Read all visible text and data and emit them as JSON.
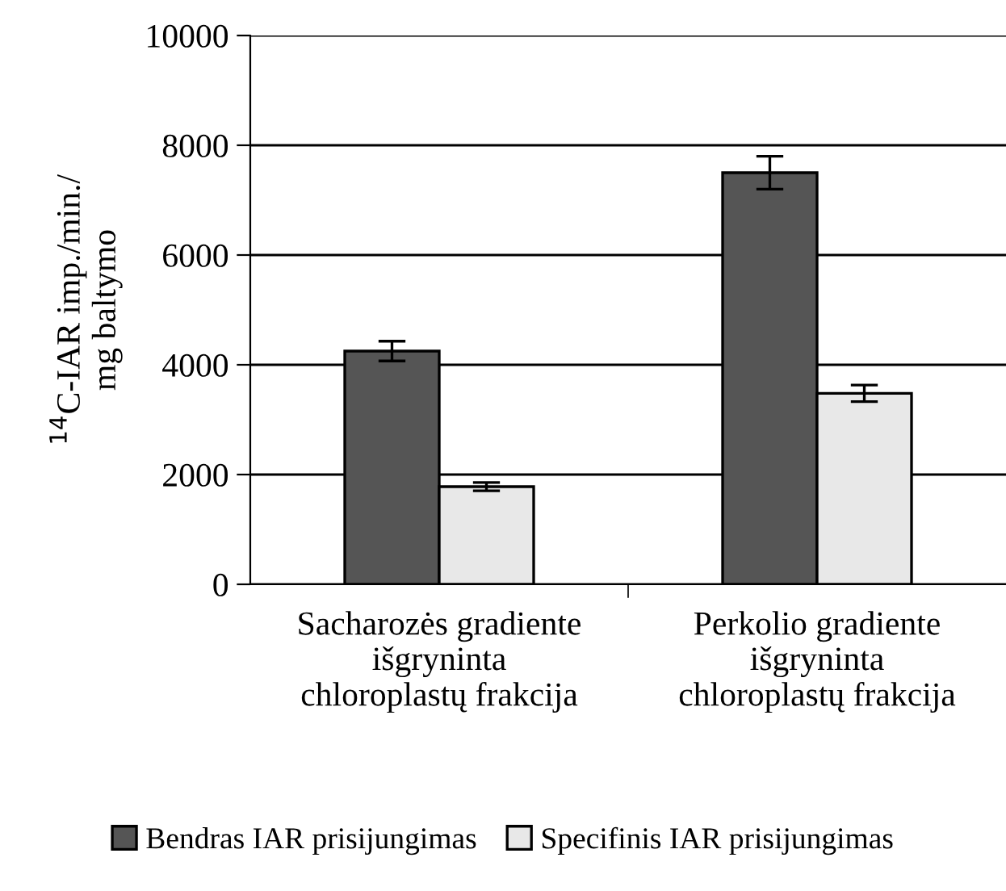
{
  "chart_data": {
    "type": "bar",
    "ylabel": "$^{14}$C-IAR imp./min./\nmg baltymo",
    "categories": [
      "Sacharozės gradiente\nišgryninta\nchloroplastų frakcija",
      "Perkolio gradiente\nišgryninta\nchloroplastų frakcija"
    ],
    "series": [
      {
        "name": "Bendras IAR prisijungimas",
        "color": "#555555",
        "values": [
          4250,
          7500
        ],
        "errors": [
          180,
          300
        ]
      },
      {
        "name": "Specifinis IAR prisijungimas",
        "color": "#e8e8e8",
        "values": [
          1780,
          3480
        ],
        "errors": [
          75,
          150
        ]
      }
    ],
    "ylim": [
      0,
      10000
    ],
    "yticks": [
      0,
      2000,
      4000,
      6000,
      8000,
      10000
    ],
    "grid": "y",
    "legend": "bottom"
  }
}
